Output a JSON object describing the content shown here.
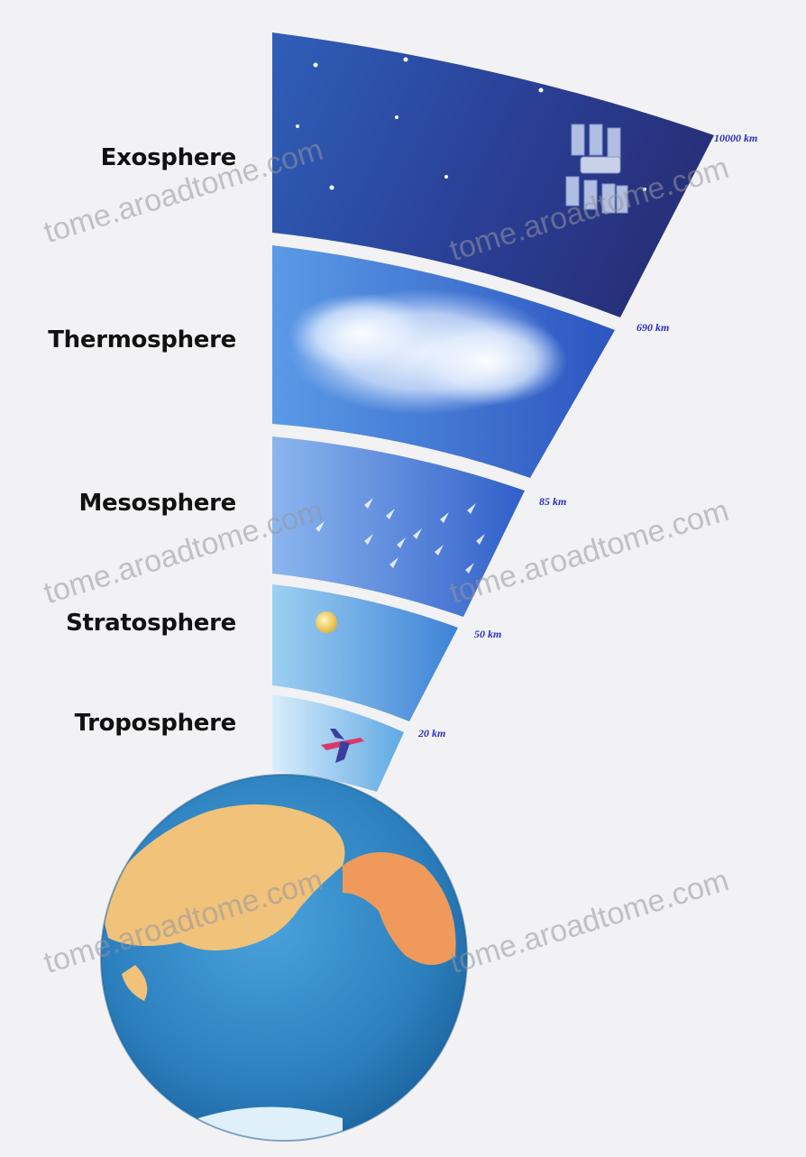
{
  "layers": [
    {
      "name": "Exosphere",
      "altitude": "10000 km"
    },
    {
      "name": "Thermosphere",
      "altitude": "690 km"
    },
    {
      "name": "Mesosphere",
      "altitude": "85 km"
    },
    {
      "name": "Stratosphere",
      "altitude": "50 km"
    },
    {
      "name": "Troposphere",
      "altitude": "20 km"
    }
  ],
  "watermark": "tome.aroadtome.com",
  "colors": {
    "background": "#f2f2f4",
    "space": "#2a3f96",
    "sky": "#4a8ee0",
    "ocean": "#2f86c4",
    "land": "#f0c27a",
    "altitude_text": "#2c2cc0"
  },
  "icons": [
    "satellite-icon",
    "cloud-icon",
    "meteor-icon",
    "weather-balloon-icon",
    "airplane-icon",
    "earth-globe-icon",
    "star-icon"
  ]
}
